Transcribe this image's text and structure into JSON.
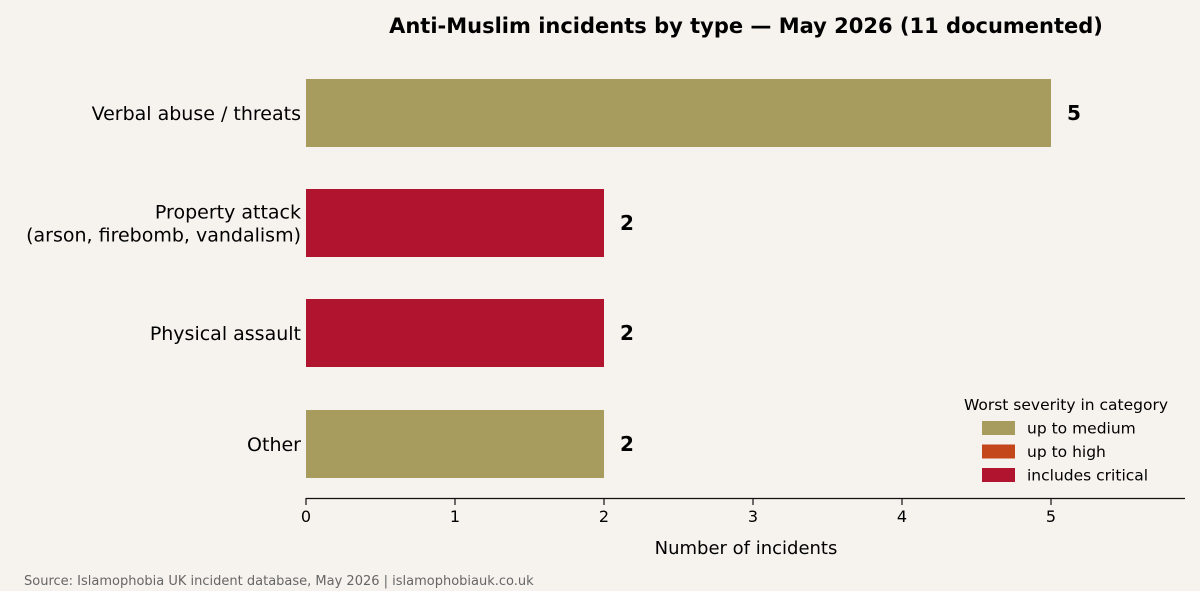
{
  "chart_data": {
    "type": "bar",
    "orientation": "horizontal",
    "title": "Anti-Muslim incidents by type — May 2026  (11 documented)",
    "xlabel": "Number of incidents",
    "ylabel": "",
    "xlim": [
      0,
      5.9
    ],
    "xticks": [
      "0",
      "1",
      "2",
      "3",
      "4",
      "5"
    ],
    "categories": [
      [
        "Verbal abuse / threats"
      ],
      [
        "Property attack",
        "(arson, firebomb, vandalism)"
      ],
      [
        "Physical assault"
      ],
      [
        "Other"
      ]
    ],
    "values": [
      5,
      2,
      2,
      2
    ],
    "value_labels": [
      "5",
      "2",
      "2",
      "2"
    ],
    "bar_severity": [
      "medium",
      "critical",
      "critical",
      "medium"
    ],
    "grid": false,
    "legend": {
      "title": "Worst severity in category",
      "position": "lower-right",
      "items": [
        {
          "key": "medium",
          "label": "up to medium",
          "color": "#a89b5e"
        },
        {
          "key": "high",
          "label": "up to high",
          "color": "#c4461b"
        },
        {
          "key": "critical",
          "label": "includes critical",
          "color": "#b0142f"
        }
      ]
    }
  },
  "source": "Source: Islamophobia UK incident database, May 2026  |  islamophobiauk.co.uk",
  "colors": {
    "background": "#f6f3ee",
    "text": "#111111",
    "source_text": "#666666"
  }
}
